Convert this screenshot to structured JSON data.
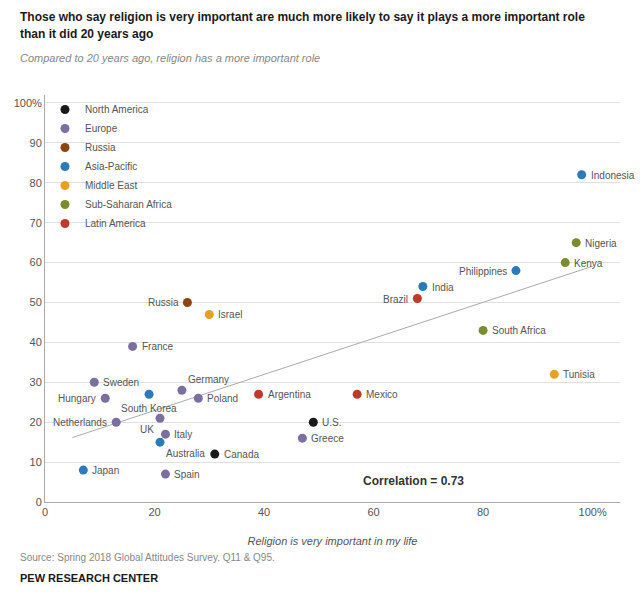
{
  "chart_data": {
    "type": "scatter",
    "title": "Those who say religion is very important are much more likely to say it plays a more important role than it did 20 years ago",
    "subtitle": "Compared to 20 years ago, religion has a more important role",
    "xlabel": "Religion is very important in my life",
    "source": "Source: Spring 2018 Global Attitudes Survey. Q11 & Q95.",
    "footer": "PEW RESEARCH CENTER",
    "annotation": "Correlation = 0.73",
    "series": [
      {
        "name": "North America",
        "color": "#1a1a1a",
        "x": [
          31,
          49
        ],
        "y": [
          12,
          20
        ],
        "labels": [
          "Canada",
          "U.S."
        ]
      },
      {
        "name": "Europe",
        "color": "#7b6fa0",
        "x": [
          9,
          11,
          13,
          16,
          21,
          22,
          22,
          25,
          28,
          47
        ],
        "y": [
          30,
          26,
          20,
          39,
          21,
          17,
          7,
          28,
          26,
          16
        ],
        "labels": [
          "Sweden",
          "Hungary",
          "Netherlands",
          "France",
          "UK",
          "Italy",
          "Spain",
          "Germany",
          "Poland",
          "Greece"
        ]
      },
      {
        "name": "Russia",
        "color": "#8B4513",
        "x": [
          26
        ],
        "y": [
          50
        ],
        "labels": [
          "Russia"
        ]
      },
      {
        "name": "Asia-Pacific",
        "color": "#2b7bba",
        "x": [
          7,
          19,
          21,
          69,
          86,
          98
        ],
        "y": [
          8,
          27,
          15,
          54,
          58,
          82
        ],
        "labels": [
          "Japan",
          "South Korea",
          "Australia",
          "India",
          "Philippines",
          "Indonesia"
        ]
      },
      {
        "name": "Middle East",
        "color": "#e8a020",
        "x": [
          30,
          93
        ],
        "y": [
          47,
          32
        ],
        "labels": [
          "Israel",
          "Tunisia"
        ]
      },
      {
        "name": "Sub-Saharan Africa",
        "color": "#7a8c2e",
        "x": [
          80,
          95,
          97
        ],
        "y": [
          43,
          60,
          65
        ],
        "labels": [
          "South Africa",
          "Kenya",
          "Nigeria"
        ]
      },
      {
        "name": "Latin America",
        "color": "#c0392b",
        "x": [
          39,
          57,
          68
        ],
        "y": [
          27,
          27,
          51
        ],
        "labels": [
          "Argentina",
          "Mexico",
          "Brazil"
        ]
      }
    ],
    "trendline": {
      "x": [
        5,
        100
      ],
      "y": [
        16.15,
        59.09
      ],
      "color": "#aaaaaa"
    },
    "xlim": [
      0,
      105
    ],
    "ylim": [
      0,
      102
    ],
    "xticks": [
      0,
      20,
      40,
      60,
      80,
      {
        "value": 100,
        "label": "100%"
      }
    ],
    "yticks": [
      0,
      10,
      20,
      30,
      40,
      50,
      60,
      70,
      80,
      90,
      {
        "value": 100,
        "label": "100%"
      }
    ],
    "grid": "y",
    "legend": "upper left"
  }
}
